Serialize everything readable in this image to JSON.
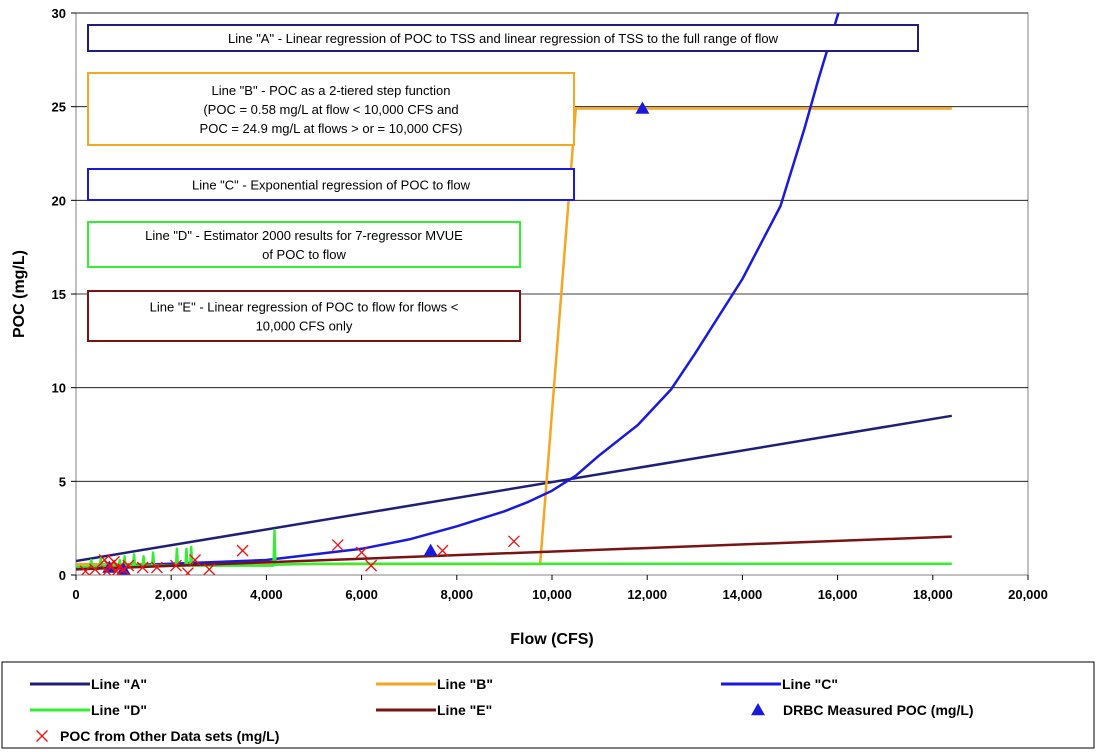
{
  "chart_data": {
    "type": "line",
    "xlabel": "Flow (CFS)",
    "ylabel": "POC (mg/L)",
    "xlim": [
      0,
      20000
    ],
    "ylim": [
      0,
      30
    ],
    "xticks": [
      0,
      2000,
      4000,
      6000,
      8000,
      10000,
      12000,
      14000,
      16000,
      18000,
      20000
    ],
    "xtick_labels": [
      "0",
      "2,000",
      "4,000",
      "6,000",
      "8,000",
      "10,000",
      "12,000",
      "14,000",
      "16,000",
      "18,000",
      "20,000"
    ],
    "yticks": [
      0,
      5,
      10,
      15,
      20,
      25,
      30
    ],
    "ytick_labels": [
      "0",
      "5",
      "10",
      "15",
      "20",
      "25",
      "30"
    ],
    "grid": "horizontal",
    "legend_position": "bottom",
    "series": [
      {
        "name": "Line \"A\"",
        "color": "#1f1f7a",
        "kind": "line",
        "x": [
          0,
          18400
        ],
        "y": [
          0.75,
          8.5
        ]
      },
      {
        "name": "Line \"B\"",
        "color": "#f5a623",
        "kind": "line",
        "x": [
          0,
          9750,
          10500,
          18400
        ],
        "y": [
          0.58,
          0.58,
          24.9,
          24.9
        ]
      },
      {
        "name": "Line \"C\"",
        "color": "#1a1adb",
        "kind": "line",
        "x": [
          0,
          2000,
          4000,
          6000,
          7000,
          8000,
          9000,
          9500,
          10000,
          10500,
          11000,
          11800,
          12500,
          13000,
          14000,
          14800,
          15300,
          15600,
          15900,
          16250
        ],
        "y": [
          0.4,
          0.6,
          0.8,
          1.4,
          1.9,
          2.6,
          3.4,
          3.9,
          4.5,
          5.3,
          6.4,
          8.0,
          9.9,
          11.8,
          15.8,
          19.7,
          23.8,
          26.5,
          29.0,
          32.0
        ]
      },
      {
        "name": "Line \"D\"",
        "color": "#33ee33",
        "kind": "spiky",
        "x": [
          0,
          300,
          320,
          340,
          500,
          520,
          540,
          900,
          920,
          940,
          1000,
          1020,
          1040,
          1200,
          1220,
          1240,
          1400,
          1420,
          1440,
          1600,
          1620,
          1640,
          2100,
          2120,
          2140,
          2300,
          2320,
          2340,
          2400,
          2420,
          2440,
          4150,
          4170,
          4190,
          5000,
          7000,
          8000,
          18400
        ],
        "y": [
          0.45,
          0.45,
          0.8,
          0.45,
          0.5,
          0.9,
          0.5,
          0.5,
          0.8,
          0.5,
          0.5,
          1.0,
          0.5,
          0.5,
          1.1,
          0.5,
          0.5,
          1.0,
          0.5,
          0.5,
          1.2,
          0.5,
          0.5,
          1.4,
          0.5,
          0.5,
          1.4,
          0.5,
          0.5,
          1.5,
          0.5,
          0.5,
          2.4,
          0.55,
          0.6,
          0.6,
          0.6,
          0.6
        ]
      },
      {
        "name": "Line \"E\"",
        "color": "#7a1414",
        "kind": "line",
        "x": [
          0,
          18400
        ],
        "y": [
          0.3,
          2.05
        ]
      },
      {
        "name": "DRBC Measured POC (mg/L)",
        "color": "#1a1adb",
        "kind": "triangle",
        "x": [
          700,
          1000,
          7450,
          11900
        ],
        "y": [
          0.4,
          0.3,
          1.3,
          24.9
        ]
      },
      {
        "name": "POC from Other Data sets (mg/L)",
        "color": "#ee1111",
        "kind": "cross",
        "x": [
          200,
          400,
          600,
          700,
          800,
          900,
          1000,
          1100,
          1400,
          1700,
          2100,
          2350,
          2500,
          2800,
          3500,
          5500,
          6000,
          6200,
          7700,
          9200,
          650,
          850
        ],
        "y": [
          0.2,
          0.3,
          0.8,
          0.5,
          0.7,
          0.4,
          0.3,
          0.5,
          0.4,
          0.4,
          0.5,
          0.1,
          0.8,
          0.3,
          1.3,
          1.6,
          1.2,
          0.5,
          1.3,
          1.8,
          0.2,
          0.2
        ]
      }
    ],
    "annotations": [
      {
        "text_lines": [
          "Line \"A\" - Linear regression of POC to TSS and linear regression of TSS  to the full range of flow"
        ],
        "color": "#1f1f7a"
      },
      {
        "text_lines": [
          "Line \"B\" - POC as a 2-tiered step function",
          "(POC = 0.58 mg/L at flow < 10,000 CFS and",
          "POC = 24.9 mg/L at flows > or = 10,000 CFS)"
        ],
        "color": "#f5a623"
      },
      {
        "text_lines": [
          "Line \"C\" - Exponential regression of POC to flow"
        ],
        "color": "#1a1adb"
      },
      {
        "text_lines": [
          "Line \"D\" - Estimator 2000 results for 7-regressor MVUE",
          "of POC to flow"
        ],
        "color": "#33ee33"
      },
      {
        "text_lines": [
          "Line \"E\" - Linear regression of POC to flow for flows <",
          "10,000 CFS only"
        ],
        "color": "#7a1414"
      }
    ]
  }
}
